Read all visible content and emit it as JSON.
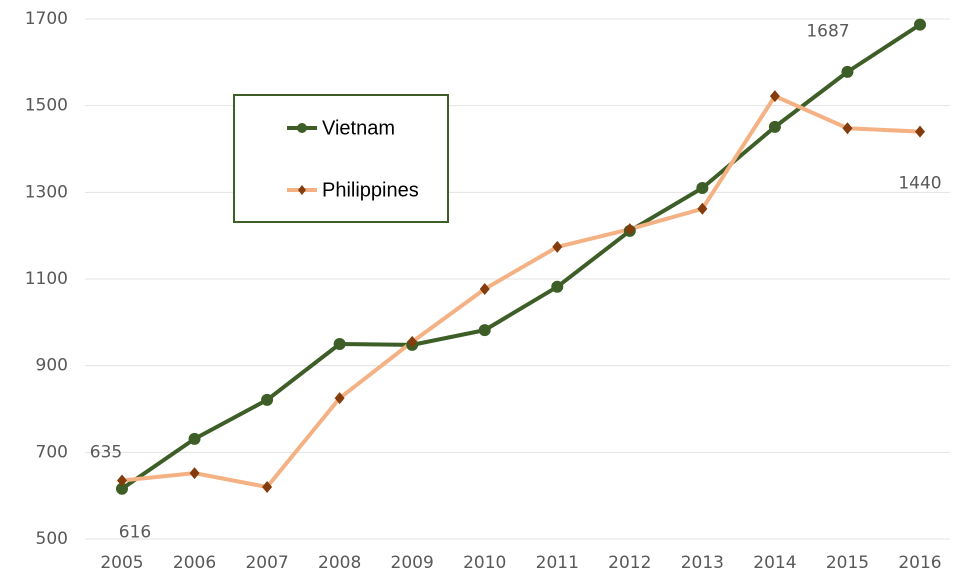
{
  "chart_data": {
    "type": "line",
    "categories": [
      "2005",
      "2006",
      "2007",
      "2008",
      "2009",
      "2010",
      "2011",
      "2012",
      "2013",
      "2014",
      "2015",
      "2016"
    ],
    "series": [
      {
        "name": "Vietnam",
        "color": "#3d5e27",
        "marker": "circle",
        "marker_color": "#3d5e27",
        "values": [
          616,
          731,
          821,
          950,
          948,
          982,
          1082,
          1211,
          1310,
          1451,
          1578,
          1687
        ],
        "data_labels": [
          0,
          11
        ]
      },
      {
        "name": "Philippines",
        "color": "#f4b183",
        "marker": "diamond",
        "marker_color": "#843c0c",
        "values": [
          635,
          652,
          620,
          825,
          955,
          1077,
          1174,
          1215,
          1262,
          1522,
          1448,
          1440
        ],
        "data_labels": [
          0,
          11
        ]
      }
    ],
    "ylim": [
      500,
      1700
    ],
    "yticks": [
      500,
      700,
      900,
      1100,
      1300,
      1500,
      1700
    ],
    "grid": true,
    "legend": "upper left"
  }
}
